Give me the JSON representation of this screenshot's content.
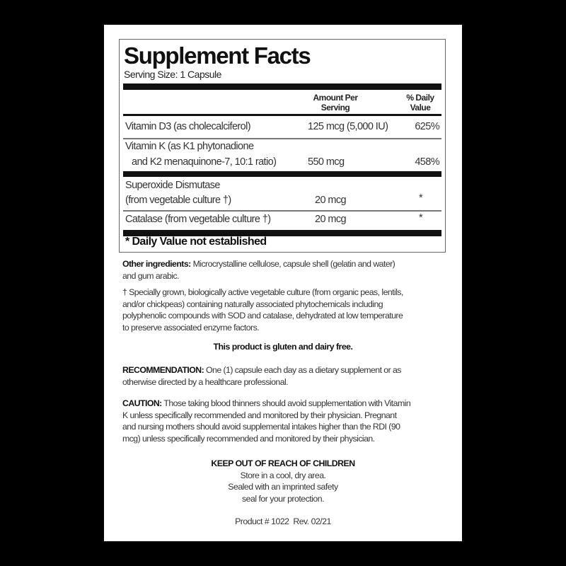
{
  "facts": {
    "title": "Supplement Facts",
    "serving_size": "Serving Size: 1 Capsule",
    "col_amount_1": "Amount Per",
    "col_amount_2": "Serving",
    "col_dv_1": "% Daily",
    "col_dv_2": "Value",
    "rows": [
      {
        "name_1": "Vitamin D3 (as cholecalciferol)",
        "name_2": "",
        "amount": "125 mcg (5,000 IU)",
        "dv": "625%"
      },
      {
        "name_1": "Vitamin K (as K1 phytonadione",
        "name_2": "and K2 menaquinone-7, 10:1 ratio)",
        "amount": "550 mcg",
        "dv": "458%"
      },
      {
        "name_1": "Superoxide Dismutase",
        "name_2": "(from vegetable culture †)",
        "amount": "20 mcg",
        "dv": "*"
      },
      {
        "name_1": "Catalase (from vegetable culture †)",
        "name_2": "",
        "amount": "20 mcg",
        "dv": "*"
      }
    ],
    "footnote": "* Daily Value not established"
  },
  "other_ingredients": {
    "label": "Other ingredients:",
    "lines": [
      "Microcrystalline cellulose, capsule shell (gelatin and water)",
      "and gum arabic."
    ]
  },
  "dagger_note": {
    "lines": [
      "† Specially grown, biologically active vegetable culture (from organic peas, lentils,",
      "and/or chickpeas) containing naturally associated phytochemicals including",
      "polyphenolic compounds with SOD and catalase, dehydrated at low temperature",
      "to preserve associated enzyme factors."
    ]
  },
  "gluten_free": "This product is gluten and dairy free.",
  "recommendation": {
    "label": "RECOMMENDATION:",
    "lines": [
      "One (1) capsule each day as a dietary supplement or as",
      "otherwise directed by a healthcare professional."
    ]
  },
  "caution": {
    "label": "CAUTION:",
    "lines": [
      "Those taking blood thinners should avoid supplementation with Vitamin",
      "K unless specifically recommended and  monitored by their physician. Pregnant",
      "and nursing mothers should avoid supplemental intakes higher than the RDI (90",
      "mcg) unless specifically recommended and monitored by their physician."
    ]
  },
  "storage": {
    "heading": "KEEP OUT OF REACH OF CHILDREN",
    "lines": [
      "Store in a cool, dry area.",
      "Sealed with an imprinted safety",
      "seal for your protection."
    ]
  },
  "product_line": "Product # 1022  Rev. 02/21"
}
